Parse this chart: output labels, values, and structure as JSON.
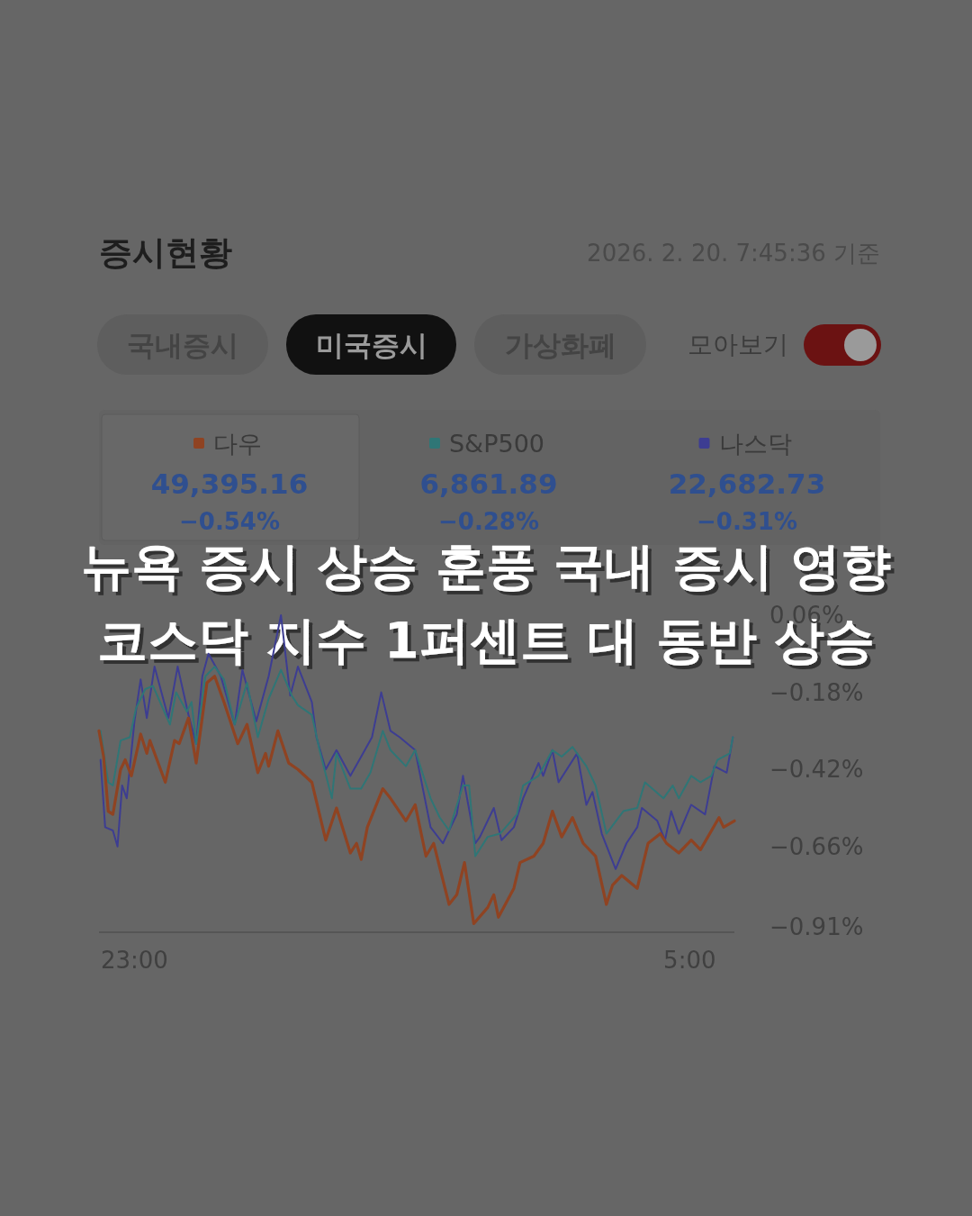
{
  "chart_data": {
    "type": "line",
    "title": "뉴욕 증시 상승 훈풍 국내 증시 영향\n코스닥 지수 1퍼센트 대 동반 상승",
    "annotations": [
      "증시현황",
      "2026. 2. 20. 7:45:36 기준",
      "국내증시",
      "미국증시",
      "가상화폐",
      "모아보기",
      "49,395.16",
      "−0.54%",
      "6,861.89",
      "−0.28%",
      "22,682.73",
      "−0.31%"
    ],
    "xlim": [
      "2026-02-19T22:37",
      "2026-02-20T05:29"
    ],
    "xticks": [
      {
        "value": "2026-02-19T23:00",
        "label": "23:00"
      },
      {
        "value": "2026-02-20T05:00",
        "label": "5:00"
      }
    ],
    "ylim": [
      -0.91,
      0.06
    ],
    "yticks": [
      {
        "value": 0.06,
        "label": "0.06%"
      },
      {
        "value": -0.18,
        "label": "−0.18%"
      },
      {
        "value": -0.42,
        "label": "−0.42%"
      },
      {
        "value": -0.66,
        "label": "−0.66%"
      },
      {
        "value": -0.91,
        "label": "−0.91%"
      }
    ],
    "grid": false,
    "legend": "top",
    "line_style": "solid",
    "marker": "none",
    "series": [
      {
        "name": "다우",
        "color": "#8f4322",
        "x": [
          "2026-02-19T22:37",
          "2026-02-19T22:40",
          "2026-02-19T22:43",
          "2026-02-19T22:46",
          "2026-02-19T22:51",
          "2026-02-19T22:54",
          "2026-02-19T22:58",
          "2026-02-19T23:04",
          "2026-02-19T23:08",
          "2026-02-19T23:10",
          "2026-02-19T23:20",
          "2026-02-19T23:26",
          "2026-02-19T23:29",
          "2026-02-19T23:35",
          "2026-02-19T23:40",
          "2026-02-19T23:47",
          "2026-02-19T23:52",
          "2026-02-19T23:58",
          "2026-02-20T00:07",
          "2026-02-20T00:13",
          "2026-02-20T00:20",
          "2026-02-20T00:25",
          "2026-02-20T00:27",
          "2026-02-20T00:33",
          "2026-02-20T00:40",
          "2026-02-20T00:46",
          "2026-02-20T00:55",
          "2026-02-20T01:04",
          "2026-02-20T01:11",
          "2026-02-20T01:20",
          "2026-02-20T01:24",
          "2026-02-20T01:27",
          "2026-02-20T01:31",
          "2026-02-20T01:41",
          "2026-02-20T01:46",
          "2026-02-20T01:56",
          "2026-02-20T02:02",
          "2026-02-20T02:09",
          "2026-02-20T02:14",
          "2026-02-20T02:24",
          "2026-02-20T02:29",
          "2026-02-20T02:34",
          "2026-02-20T02:40",
          "2026-02-20T02:49",
          "2026-02-20T02:53",
          "2026-02-20T02:56",
          "2026-02-20T03:06",
          "2026-02-20T03:10",
          "2026-02-20T03:19",
          "2026-02-20T03:25",
          "2026-02-20T03:31",
          "2026-02-20T03:37",
          "2026-02-20T03:44",
          "2026-02-20T03:51",
          "2026-02-20T03:59",
          "2026-02-20T04:06",
          "2026-02-20T04:10",
          "2026-02-20T04:16",
          "2026-02-20T04:26",
          "2026-02-20T04:33",
          "2026-02-20T04:41",
          "2026-02-20T04:45",
          "2026-02-20T04:53",
          "2026-02-20T05:01",
          "2026-02-20T05:07",
          "2026-02-20T05:19",
          "2026-02-20T05:22",
          "2026-02-20T05:29"
        ],
        "values": [
          -0.3,
          -0.38,
          -0.55,
          -0.56,
          -0.42,
          -0.39,
          -0.44,
          -0.31,
          -0.37,
          -0.33,
          -0.46,
          -0.33,
          -0.34,
          -0.26,
          -0.4,
          -0.15,
          -0.13,
          -0.21,
          -0.34,
          -0.28,
          -0.43,
          -0.37,
          -0.41,
          -0.3,
          -0.4,
          -0.42,
          -0.46,
          -0.64,
          -0.54,
          -0.68,
          -0.65,
          -0.7,
          -0.6,
          -0.48,
          -0.51,
          -0.58,
          -0.53,
          -0.69,
          -0.65,
          -0.84,
          -0.81,
          -0.71,
          -0.9,
          -0.85,
          -0.81,
          -0.88,
          -0.79,
          -0.71,
          -0.69,
          -0.65,
          -0.55,
          -0.63,
          -0.57,
          -0.65,
          -0.69,
          -0.84,
          -0.78,
          -0.75,
          -0.79,
          -0.65,
          -0.62,
          -0.65,
          -0.68,
          -0.64,
          -0.67,
          -0.57,
          -0.6,
          -0.58
        ]
      },
      {
        "name": "S&P500",
        "color": "#2f7676",
        "x": [
          "2026-02-19T22:38",
          "2026-02-19T22:43",
          "2026-02-19T22:46",
          "2026-02-19T22:51",
          "2026-02-19T22:57",
          "2026-02-19T23:01",
          "2026-02-19T23:07",
          "2026-02-19T23:12",
          "2026-02-19T23:23",
          "2026-02-19T23:27",
          "2026-02-19T23:34",
          "2026-02-19T23:37",
          "2026-02-19T23:40",
          "2026-02-19T23:46",
          "2026-02-19T23:52",
          "2026-02-19T23:58",
          "2026-02-20T00:05",
          "2026-02-20T00:13",
          "2026-02-20T00:20",
          "2026-02-20T00:27",
          "2026-02-20T00:35",
          "2026-02-20T00:42",
          "2026-02-20T00:46",
          "2026-02-20T00:55",
          "2026-02-20T01:00",
          "2026-02-20T01:08",
          "2026-02-20T01:11",
          "2026-02-20T01:20",
          "2026-02-20T01:27",
          "2026-02-20T01:33",
          "2026-02-20T01:41",
          "2026-02-20T01:46",
          "2026-02-20T01:56",
          "2026-02-20T02:02",
          "2026-02-20T02:12",
          "2026-02-20T02:18",
          "2026-02-20T02:24",
          "2026-02-20T02:33",
          "2026-02-20T02:37",
          "2026-02-20T02:41",
          "2026-02-20T02:49",
          "2026-02-20T02:57",
          "2026-02-20T03:08",
          "2026-02-20T03:12",
          "2026-02-20T03:22",
          "2026-02-20T03:31",
          "2026-02-20T03:37",
          "2026-02-20T03:44",
          "2026-02-20T03:53",
          "2026-02-20T03:59",
          "2026-02-20T04:06",
          "2026-02-20T04:17",
          "2026-02-20T04:26",
          "2026-02-20T04:31",
          "2026-02-20T04:43",
          "2026-02-20T04:49",
          "2026-02-20T04:53",
          "2026-02-20T05:01",
          "2026-02-20T05:07",
          "2026-02-20T05:14",
          "2026-02-20T05:18",
          "2026-02-20T05:26",
          "2026-02-20T05:28"
        ],
        "values": [
          -0.3,
          -0.46,
          -0.47,
          -0.33,
          -0.32,
          -0.23,
          -0.17,
          -0.16,
          -0.28,
          -0.18,
          -0.24,
          -0.21,
          -0.34,
          -0.13,
          -0.1,
          -0.14,
          -0.28,
          -0.15,
          -0.32,
          -0.2,
          -0.11,
          -0.19,
          -0.22,
          -0.25,
          -0.36,
          -0.51,
          -0.37,
          -0.48,
          -0.48,
          -0.43,
          -0.3,
          -0.36,
          -0.41,
          -0.36,
          -0.51,
          -0.57,
          -0.61,
          -0.47,
          -0.47,
          -0.69,
          -0.63,
          -0.62,
          -0.56,
          -0.47,
          -0.44,
          -0.36,
          -0.38,
          -0.35,
          -0.41,
          -0.47,
          -0.62,
          -0.55,
          -0.54,
          -0.46,
          -0.51,
          -0.47,
          -0.51,
          -0.44,
          -0.46,
          -0.44,
          -0.39,
          -0.37,
          -0.32
        ]
      },
      {
        "name": "나스닥",
        "color": "#3d3d92",
        "x": [
          "2026-02-19T22:38",
          "2026-02-19T22:41",
          "2026-02-19T22:46",
          "2026-02-19T22:49",
          "2026-02-19T22:52",
          "2026-02-19T22:55",
          "2026-02-19T23:00",
          "2026-02-19T23:04",
          "2026-02-19T23:08",
          "2026-02-19T23:13",
          "2026-02-19T23:22",
          "2026-02-19T23:28",
          "2026-02-19T23:35",
          "2026-02-19T23:40",
          "2026-02-19T23:44",
          "2026-02-19T23:48",
          "2026-02-19T23:56",
          "2026-02-20T00:05",
          "2026-02-20T00:10",
          "2026-02-20T00:19",
          "2026-02-20T00:27",
          "2026-02-20T00:35",
          "2026-02-20T00:41",
          "2026-02-20T00:46",
          "2026-02-20T00:55",
          "2026-02-20T00:58",
          "2026-02-20T01:04",
          "2026-02-20T01:11",
          "2026-02-20T01:20",
          "2026-02-20T01:27",
          "2026-02-20T01:34",
          "2026-02-20T01:40",
          "2026-02-20T01:46",
          "2026-02-20T01:52",
          "2026-02-20T02:02",
          "2026-02-20T02:12",
          "2026-02-20T02:20",
          "2026-02-20T02:29",
          "2026-02-20T02:33",
          "2026-02-20T02:41",
          "2026-02-20T02:44",
          "2026-02-20T02:53",
          "2026-02-20T02:58",
          "2026-02-20T03:06",
          "2026-02-20T03:12",
          "2026-02-20T03:22",
          "2026-02-20T03:25",
          "2026-02-20T03:31",
          "2026-02-20T03:35",
          "2026-02-20T03:47",
          "2026-02-20T03:53",
          "2026-02-20T03:57",
          "2026-02-20T04:03",
          "2026-02-20T04:12",
          "2026-02-20T04:19",
          "2026-02-20T04:26",
          "2026-02-20T04:29",
          "2026-02-20T04:39",
          "2026-02-20T04:44",
          "2026-02-20T04:48",
          "2026-02-20T04:53",
          "2026-02-20T05:01",
          "2026-02-20T05:10",
          "2026-02-20T05:16",
          "2026-02-20T05:24",
          "2026-02-20T05:28"
        ],
        "values": [
          -0.39,
          -0.6,
          -0.61,
          -0.66,
          -0.47,
          -0.51,
          -0.27,
          -0.14,
          -0.26,
          -0.1,
          -0.26,
          -0.1,
          -0.25,
          -0.34,
          -0.13,
          -0.06,
          -0.13,
          -0.28,
          -0.11,
          -0.27,
          -0.13,
          0.06,
          -0.19,
          -0.1,
          -0.21,
          -0.32,
          -0.42,
          -0.36,
          -0.44,
          -0.38,
          -0.32,
          -0.18,
          -0.3,
          -0.32,
          -0.36,
          -0.6,
          -0.65,
          -0.56,
          -0.44,
          -0.65,
          -0.63,
          -0.54,
          -0.64,
          -0.6,
          -0.51,
          -0.4,
          -0.44,
          -0.36,
          -0.46,
          -0.37,
          -0.53,
          -0.49,
          -0.62,
          -0.73,
          -0.65,
          -0.6,
          -0.54,
          -0.58,
          -0.64,
          -0.55,
          -0.62,
          -0.53,
          -0.56,
          -0.41,
          -0.43,
          -0.32
        ]
      }
    ]
  }
}
